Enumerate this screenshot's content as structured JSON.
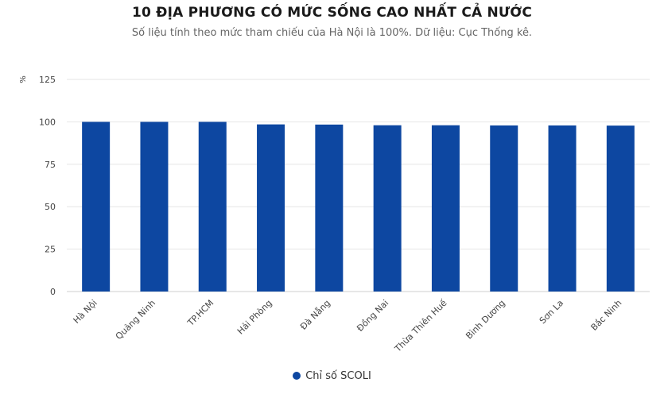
{
  "chart_data": {
    "type": "bar",
    "title": "10 ĐỊA PHƯƠNG CÓ MỨC SỐNG CAO NHẤT CẢ NƯỚC",
    "subtitle": "Số liệu tính theo mức tham chiếu của Hà Nội là 100%. Dữ liệu: Cục Thống kê.",
    "ylabel": "%",
    "ylim": [
      0,
      125
    ],
    "yticks": [
      0,
      25,
      50,
      75,
      100,
      125
    ],
    "grid": true,
    "legend_position": "bottom",
    "categories": [
      "Hà Nội",
      "Quảng Ninh",
      "TP.HCM",
      "Hải Phòng",
      "Đà Nẵng",
      "Đồng Nai",
      "Thừa Thiên Huế",
      "Bình Dương",
      "Sơn La",
      "Bắc Ninh"
    ],
    "series": [
      {
        "name": "Chỉ số SCOLI",
        "color": "#0d47a1",
        "values": [
          100,
          100,
          100,
          98.5,
          98.4,
          98.0,
          98.0,
          97.9,
          97.9,
          97.8
        ]
      }
    ]
  }
}
